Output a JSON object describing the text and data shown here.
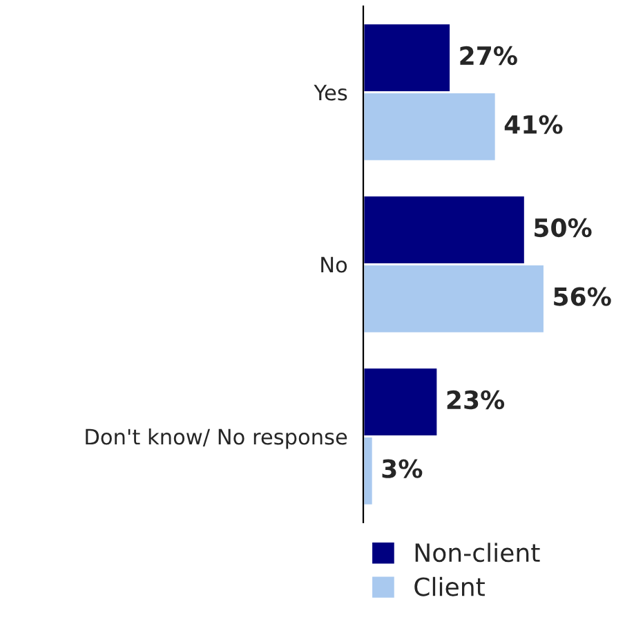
{
  "chart_data": {
    "type": "bar",
    "orientation": "horizontal",
    "categories": [
      "Yes",
      "No",
      "Don't know/ No response"
    ],
    "series": [
      {
        "name": "Non-client",
        "color": "#000080",
        "values": [
          27,
          50,
          23
        ],
        "value_labels": [
          "27%",
          "50%",
          "23%"
        ]
      },
      {
        "name": "Client",
        "color": "#a9c9ef",
        "values": [
          41,
          56,
          3
        ],
        "value_labels": [
          "41%",
          "56%",
          "3%"
        ]
      }
    ],
    "legend": "bottom"
  }
}
